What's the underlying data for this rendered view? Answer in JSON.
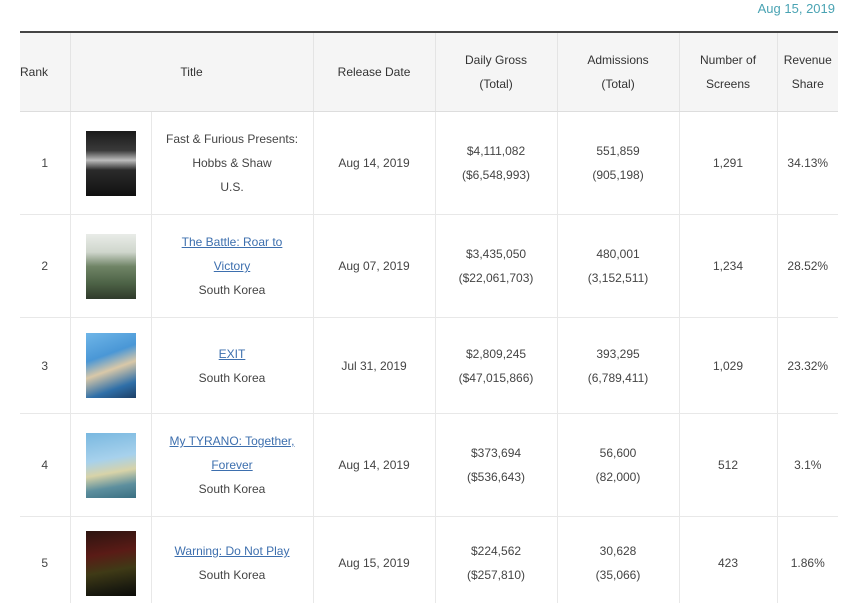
{
  "date": "Aug 15, 2019",
  "columns": {
    "rank": "Rank",
    "title": "Title",
    "release_date": "Release Date",
    "daily_gross_line1": "Daily Gross",
    "daily_gross_line2": "(Total)",
    "admissions_line1": "Admissions",
    "admissions_line2": "(Total)",
    "screens_line1": "Number of",
    "screens_line2": "Screens",
    "share_line1": "Revenue",
    "share_line2": "Share"
  },
  "rows": [
    {
      "rank": "1",
      "poster_icon": "movie-poster-hobbs-shaw",
      "title_line1": "Fast & Furious Presents:",
      "title_line2": "Hobbs & Shaw",
      "country": "U.S.",
      "release_date": "Aug 14, 2019",
      "daily_gross": "$4,111,082",
      "total_gross": "($6,548,993)",
      "admissions": "551,859",
      "total_admissions": "(905,198)",
      "screens": "1,291",
      "share": "34.13%"
    },
    {
      "rank": "2",
      "poster_icon": "movie-poster-the-battle",
      "title_line1": "The Battle: Roar to",
      "title_line2": "Victory",
      "country": "South Korea",
      "release_date": "Aug 07, 2019",
      "daily_gross": "$3,435,050",
      "total_gross": "($22,061,703)",
      "admissions": "480,001",
      "total_admissions": "(3,152,511)",
      "screens": "1,234",
      "share": "28.52%"
    },
    {
      "rank": "3",
      "poster_icon": "movie-poster-exit",
      "title_line1": "EXIT",
      "country": "South Korea",
      "release_date": "Jul 31, 2019",
      "daily_gross": "$2,809,245",
      "total_gross": "($47,015,866)",
      "admissions": "393,295",
      "total_admissions": "(6,789,411)",
      "screens": "1,029",
      "share": "23.32%"
    },
    {
      "rank": "4",
      "poster_icon": "movie-poster-my-tyrano",
      "title_line1": "My TYRANO: Together,",
      "title_line2": "Forever",
      "country": "South Korea",
      "release_date": "Aug 14, 2019",
      "daily_gross": "$373,694",
      "total_gross": "($536,643)",
      "admissions": "56,600",
      "total_admissions": "(82,000)",
      "screens": "512",
      "share": "3.1%"
    },
    {
      "rank": "5",
      "poster_icon": "movie-poster-warning-do-not-play",
      "title_line1": "Warning: Do Not Play",
      "country": "South Korea",
      "release_date": "Aug 15, 2019",
      "daily_gross": "$224,562",
      "total_gross": "($257,810)",
      "admissions": "30,628",
      "total_admissions": "(35,066)",
      "screens": "423",
      "share": "1.86%"
    }
  ]
}
